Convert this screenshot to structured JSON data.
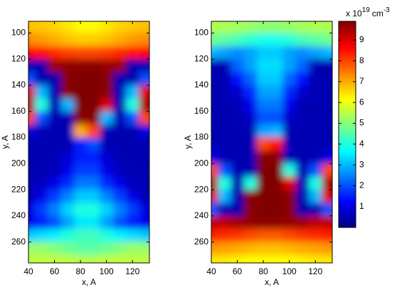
{
  "chart_data": [
    {
      "type": "contour",
      "xlabel": "x, A",
      "ylabel": "y, A",
      "xlim": [
        40,
        133
      ],
      "ylim": [
        91,
        276
      ],
      "xticks": [
        40,
        60,
        80,
        100,
        120
      ],
      "yticks": [
        100,
        120,
        140,
        160,
        180,
        200,
        220,
        240,
        260
      ],
      "colormap": "jet",
      "x": [
        40,
        50,
        60,
        70,
        80,
        90,
        100,
        110,
        120,
        130
      ],
      "y": [
        95,
        105,
        115,
        125,
        135,
        145,
        155,
        165,
        175,
        185,
        195,
        205,
        215,
        225,
        235,
        245,
        255,
        265,
        275
      ],
      "z": [
        [
          6.8,
          6.7,
          6.6,
          6.4,
          6.2,
          6.2,
          6.4,
          6.6,
          6.7,
          6.8
        ],
        [
          7.3,
          7.2,
          7,
          6.8,
          6.7,
          6.7,
          6.8,
          7,
          7.2,
          7.3
        ],
        [
          8.6,
          8.5,
          8.3,
          8.1,
          8,
          8,
          8.1,
          8.3,
          8.5,
          8.6
        ],
        [
          0.5,
          0.5,
          9.6,
          9.7,
          9.8,
          9.8,
          9.7,
          9.6,
          0.5,
          0.5
        ],
        [
          2,
          0.5,
          0.5,
          9.8,
          9.9,
          9.9,
          9.8,
          0.5,
          0.5,
          2
        ],
        [
          9,
          3,
          0.5,
          9.8,
          9.9,
          9.9,
          9.8,
          0.5,
          3,
          9
        ],
        [
          9.5,
          4,
          0.5,
          3,
          9.9,
          9.9,
          9,
          0.5,
          4,
          9.5
        ],
        [
          8,
          2,
          0.5,
          0.5,
          9.8,
          9.8,
          3,
          0.5,
          2,
          8
        ],
        [
          1,
          0.5,
          0.5,
          0.5,
          7,
          8,
          0.5,
          0.5,
          0.5,
          1
        ],
        [
          0.5,
          0.5,
          0.5,
          0.5,
          1.5,
          2,
          0.5,
          0.5,
          0.5,
          0.5
        ],
        [
          0.5,
          0.5,
          0.5,
          0.8,
          1.5,
          1.5,
          0.8,
          0.5,
          0.5,
          0.5
        ],
        [
          0.5,
          0.5,
          0.6,
          1,
          1.8,
          1.8,
          1,
          0.6,
          0.5,
          0.5
        ],
        [
          0.5,
          0.6,
          1,
          1.6,
          2.4,
          2.4,
          1.6,
          1,
          0.6,
          0.5
        ],
        [
          0.5,
          1,
          1.8,
          2.5,
          3.2,
          3.2,
          2.5,
          1.8,
          1,
          0.5
        ],
        [
          1,
          1.8,
          2.5,
          3.3,
          4,
          4,
          3.3,
          2.5,
          1.8,
          1
        ],
        [
          1,
          1.5,
          2,
          2.8,
          3.5,
          3.5,
          2.8,
          2,
          1.5,
          1
        ],
        [
          3.2,
          3.4,
          3.6,
          4,
          4.3,
          4.3,
          4,
          3.6,
          3.4,
          3.2
        ],
        [
          5.2,
          5.2,
          5,
          4.8,
          4.6,
          4.6,
          4.8,
          5,
          5.2,
          5.2
        ],
        [
          5.6,
          5.6,
          5.6,
          5.6,
          5.5,
          5.5,
          5.6,
          5.6,
          5.6,
          5.6
        ]
      ]
    },
    {
      "type": "contour",
      "xlabel": "x, A",
      "ylabel": "y, A",
      "xlim": [
        40,
        133
      ],
      "ylim": [
        91,
        276
      ],
      "xticks": [
        40,
        60,
        80,
        100,
        120
      ],
      "yticks": [
        100,
        120,
        140,
        160,
        180,
        200,
        220,
        240,
        260
      ],
      "colormap": "jet",
      "x": [
        40,
        50,
        60,
        70,
        80,
        90,
        100,
        110,
        120,
        130
      ],
      "y": [
        95,
        105,
        115,
        125,
        135,
        145,
        155,
        165,
        175,
        185,
        195,
        205,
        215,
        225,
        235,
        245,
        255,
        265,
        275
      ],
      "z": [
        [
          5.4,
          5.4,
          5.3,
          5.2,
          5.1,
          5.1,
          5.2,
          5.3,
          5.4,
          5.4
        ],
        [
          4.8,
          4.6,
          4.4,
          4.1,
          3.9,
          3.9,
          4.1,
          4.4,
          4.6,
          4.8
        ],
        [
          3,
          2.8,
          2.6,
          2.8,
          3.2,
          3.2,
          2.8,
          2.6,
          2.8,
          3
        ],
        [
          0.5,
          0.5,
          2.2,
          2.8,
          3.4,
          3.4,
          2.8,
          2.2,
          0.5,
          0.5
        ],
        [
          0.5,
          0.5,
          1.4,
          2.2,
          3.2,
          3.2,
          2.2,
          1.4,
          0.5,
          0.5
        ],
        [
          0.5,
          0.5,
          0.8,
          1.6,
          2.8,
          2.8,
          1.6,
          0.8,
          0.5,
          0.5
        ],
        [
          0.5,
          0.5,
          0.5,
          1.1,
          2.4,
          2.4,
          1.1,
          0.5,
          0.5,
          0.5
        ],
        [
          0.5,
          0.5,
          0.5,
          0.7,
          2,
          2,
          0.7,
          0.5,
          0.5,
          0.5
        ],
        [
          0.5,
          0.5,
          0.5,
          0.5,
          2.8,
          3,
          0.5,
          0.5,
          0.5,
          0.5
        ],
        [
          0.5,
          0.5,
          0.5,
          0.5,
          8,
          8.5,
          0.5,
          0.5,
          0.5,
          0.5
        ],
        [
          1,
          0.5,
          0.5,
          0.5,
          9.8,
          9.8,
          0.5,
          0.5,
          0.5,
          1
        ],
        [
          8,
          2,
          0.5,
          0.5,
          9.9,
          9.9,
          4,
          0.5,
          2,
          8
        ],
        [
          9.5,
          4,
          0.5,
          4,
          9.9,
          9.9,
          9,
          0.5,
          4,
          9.5
        ],
        [
          9,
          3,
          0.5,
          9.8,
          9.9,
          9.9,
          9.8,
          0.5,
          3,
          9
        ],
        [
          2,
          0.5,
          0.5,
          9.8,
          9.9,
          9.9,
          9.8,
          0.5,
          0.5,
          2
        ],
        [
          9.3,
          9.3,
          9.6,
          9.7,
          9.8,
          9.8,
          9.7,
          9.6,
          9.3,
          9.3
        ],
        [
          8.4,
          8.3,
          8.2,
          8,
          7.8,
          7.8,
          8,
          8.2,
          8.3,
          8.4
        ],
        [
          7.2,
          7.1,
          7,
          6.9,
          6.8,
          6.8,
          6.9,
          7,
          7.1,
          7.2
        ],
        [
          6.4,
          6.4,
          6.3,
          6.2,
          6.2,
          6.2,
          6.2,
          6.3,
          6.4,
          6.4
        ]
      ]
    }
  ],
  "colorbar": {
    "clim": [
      0,
      9.9
    ],
    "ticks": [
      1,
      2,
      3,
      4,
      5,
      6,
      7,
      8,
      9
    ],
    "colormap": "jet",
    "label": "x 10",
    "label_exponent": "19",
    "unit": "cm",
    "unit_exponent": "-3"
  }
}
